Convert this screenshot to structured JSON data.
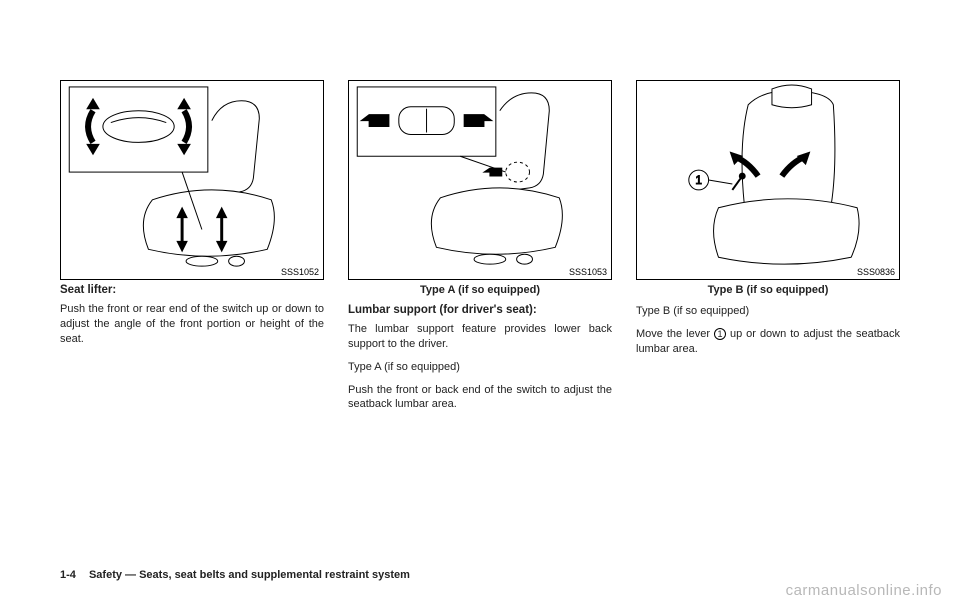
{
  "columns": [
    {
      "figcode": "SSS1052",
      "caption": "",
      "heading": "Seat lifter:",
      "paras": [
        "Push the front or rear end of the switch up or down to adjust the angle of the front portion or height of the seat."
      ],
      "diagram": "lifter"
    },
    {
      "figcode": "SSS1053",
      "caption": "Type A (if so equipped)",
      "heading": "Lumbar support (for driver's seat):",
      "paras": [
        "The lumbar support feature provides lower back support to the driver.",
        "Type A (if so equipped)",
        "Push the front or back end of the switch to adjust the seatback lumbar area."
      ],
      "diagram": "lumbarA"
    },
    {
      "figcode": "SSS0836",
      "caption": "Type B (if so equipped)",
      "heading": "",
      "paras_html": [
        "Type B (if so equipped)",
        "Move the lever <span class=\"circnum\">1</span> up or down to adjust the seatback lumbar area."
      ],
      "diagram": "lumbarB"
    }
  ],
  "footer": {
    "page": "1-4",
    "section": "Safety — Seats, seat belts and supplemental restraint system"
  },
  "watermark": "carmanualsonline.info"
}
